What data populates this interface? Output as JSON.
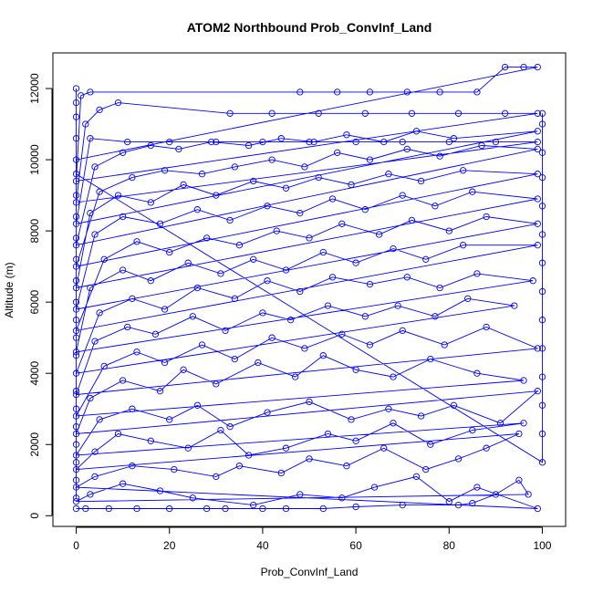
{
  "chart_data": {
    "type": "line",
    "title": "ATOM2 Northbound Prob_ConvInf_Land",
    "xlabel": "Prob_ConvInf_Land",
    "ylabel": "Altitude (m)",
    "xlim": [
      -5,
      105
    ],
    "ylim": [
      -300,
      13000
    ],
    "x_ticks": [
      0,
      20,
      40,
      60,
      80,
      100
    ],
    "y_ticks": [
      0,
      2000,
      4000,
      6000,
      8000,
      10000,
      12000
    ],
    "line_color": "#0000ff",
    "marker": "open-circle",
    "series": [
      {
        "name": "",
        "points": [
          [
            0,
            200
          ],
          [
            2,
            200
          ],
          [
            7,
            200
          ],
          [
            13,
            200
          ],
          [
            20,
            200
          ],
          [
            28,
            200
          ],
          [
            32,
            200
          ],
          [
            40,
            200
          ],
          [
            45,
            200
          ],
          [
            53,
            200
          ],
          [
            60,
            250
          ],
          [
            70,
            300
          ],
          [
            82,
            300
          ],
          [
            85,
            350
          ],
          [
            90,
            600
          ],
          [
            95,
            1000
          ],
          [
            97,
            600
          ],
          [
            0,
            400
          ],
          [
            3,
            600
          ],
          [
            10,
            900
          ],
          [
            18,
            700
          ],
          [
            25,
            500
          ],
          [
            38,
            300
          ],
          [
            48,
            600
          ],
          [
            57,
            500
          ],
          [
            64,
            800
          ],
          [
            73,
            1100
          ],
          [
            80,
            400
          ],
          [
            86,
            800
          ],
          [
            99,
            200
          ],
          [
            0,
            800
          ],
          [
            4,
            1100
          ],
          [
            12,
            1400
          ],
          [
            21,
            1300
          ],
          [
            30,
            1100
          ],
          [
            35,
            1400
          ],
          [
            44,
            1200
          ],
          [
            50,
            1600
          ],
          [
            58,
            1400
          ],
          [
            66,
            1900
          ],
          [
            75,
            1300
          ],
          [
            82,
            1600
          ],
          [
            88,
            1900
          ],
          [
            95,
            2300
          ],
          [
            0,
            1300
          ],
          [
            4,
            1800
          ],
          [
            9,
            2300
          ],
          [
            16,
            2100
          ],
          [
            24,
            1900
          ],
          [
            31,
            2400
          ],
          [
            37,
            1700
          ],
          [
            45,
            1900
          ],
          [
            54,
            2300
          ],
          [
            60,
            2100
          ],
          [
            68,
            2600
          ],
          [
            76,
            2000
          ],
          [
            85,
            2400
          ],
          [
            96,
            2600
          ],
          [
            0,
            1700
          ],
          [
            5,
            2700
          ],
          [
            12,
            3000
          ],
          [
            20,
            2700
          ],
          [
            26,
            3100
          ],
          [
            33,
            2500
          ],
          [
            41,
            2900
          ],
          [
            50,
            3200
          ],
          [
            59,
            2700
          ],
          [
            67,
            3000
          ],
          [
            74,
            2800
          ],
          [
            81,
            3100
          ],
          [
            91,
            2600
          ],
          [
            99,
            3500
          ],
          [
            0,
            2300
          ],
          [
            3,
            3300
          ],
          [
            10,
            3800
          ],
          [
            18,
            3500
          ],
          [
            23,
            4100
          ],
          [
            30,
            3700
          ],
          [
            39,
            4300
          ],
          [
            47,
            3900
          ],
          [
            53,
            4500
          ],
          [
            60,
            4100
          ],
          [
            68,
            3900
          ],
          [
            76,
            4400
          ],
          [
            86,
            4000
          ],
          [
            96,
            3800
          ],
          [
            0,
            2800
          ],
          [
            6,
            4200
          ],
          [
            13,
            4600
          ],
          [
            19,
            4300
          ],
          [
            27,
            4800
          ],
          [
            34,
            4400
          ],
          [
            42,
            5000
          ],
          [
            49,
            4700
          ],
          [
            57,
            5100
          ],
          [
            63,
            4800
          ],
          [
            70,
            5200
          ],
          [
            79,
            4800
          ],
          [
            88,
            5300
          ],
          [
            99,
            4700
          ],
          [
            0,
            3400
          ],
          [
            4,
            4900
          ],
          [
            11,
            5300
          ],
          [
            17,
            5100
          ],
          [
            25,
            5600
          ],
          [
            32,
            5200
          ],
          [
            40,
            5700
          ],
          [
            46,
            5500
          ],
          [
            54,
            5900
          ],
          [
            62,
            5600
          ],
          [
            69,
            5900
          ],
          [
            77,
            5600
          ],
          [
            84,
            6100
          ],
          [
            94,
            5900
          ],
          [
            0,
            4000
          ],
          [
            5,
            5700
          ],
          [
            12,
            6100
          ],
          [
            19,
            5800
          ],
          [
            26,
            6400
          ],
          [
            34,
            6100
          ],
          [
            41,
            6600
          ],
          [
            48,
            6300
          ],
          [
            55,
            6700
          ],
          [
            63,
            6500
          ],
          [
            71,
            6700
          ],
          [
            78,
            6400
          ],
          [
            86,
            6800
          ],
          [
            98,
            6600
          ],
          [
            0,
            4600
          ],
          [
            3,
            6400
          ],
          [
            10,
            6900
          ],
          [
            16,
            6600
          ],
          [
            24,
            7100
          ],
          [
            31,
            6800
          ],
          [
            38,
            7200
          ],
          [
            45,
            6900
          ],
          [
            53,
            7400
          ],
          [
            60,
            7100
          ],
          [
            68,
            7500
          ],
          [
            75,
            7200
          ],
          [
            83,
            7600
          ],
          [
            99,
            7600
          ],
          [
            0,
            5200
          ],
          [
            6,
            7200
          ],
          [
            13,
            7700
          ],
          [
            20,
            7400
          ],
          [
            28,
            7800
          ],
          [
            35,
            7600
          ],
          [
            43,
            8000
          ],
          [
            50,
            7800
          ],
          [
            57,
            8200
          ],
          [
            65,
            7900
          ],
          [
            72,
            8300
          ],
          [
            80,
            8000
          ],
          [
            88,
            8400
          ],
          [
            99,
            8200
          ],
          [
            0,
            5800
          ],
          [
            4,
            7900
          ],
          [
            10,
            8400
          ],
          [
            18,
            8200
          ],
          [
            26,
            8600
          ],
          [
            33,
            8300
          ],
          [
            41,
            8700
          ],
          [
            48,
            8500
          ],
          [
            55,
            8900
          ],
          [
            62,
            8600
          ],
          [
            70,
            9000
          ],
          [
            77,
            8700
          ],
          [
            85,
            9100
          ],
          [
            99,
            8900
          ],
          [
            0,
            6400
          ],
          [
            3,
            8500
          ],
          [
            9,
            9000
          ],
          [
            16,
            8800
          ],
          [
            23,
            9300
          ],
          [
            30,
            9000
          ],
          [
            38,
            9400
          ],
          [
            45,
            9200
          ],
          [
            52,
            9500
          ],
          [
            59,
            9300
          ],
          [
            67,
            9600
          ],
          [
            74,
            9400
          ],
          [
            83,
            9700
          ],
          [
            99,
            9600
          ],
          [
            0,
            7000
          ],
          [
            5,
            9100
          ],
          [
            12,
            9500
          ],
          [
            19,
            9700
          ],
          [
            27,
            9600
          ],
          [
            34,
            9800
          ],
          [
            42,
            10000
          ],
          [
            49,
            9800
          ],
          [
            56,
            10200
          ],
          [
            63,
            10000
          ],
          [
            71,
            10300
          ],
          [
            78,
            10100
          ],
          [
            87,
            10400
          ],
          [
            99,
            10300
          ],
          [
            0,
            7600
          ],
          [
            4,
            9800
          ],
          [
            10,
            10200
          ],
          [
            16,
            10400
          ],
          [
            22,
            10300
          ],
          [
            29,
            10500
          ],
          [
            37,
            10400
          ],
          [
            44,
            10600
          ],
          [
            51,
            10500
          ],
          [
            58,
            10700
          ],
          [
            66,
            10500
          ],
          [
            73,
            10800
          ],
          [
            81,
            10600
          ],
          [
            99,
            10800
          ],
          [
            0,
            8200
          ],
          [
            3,
            10600
          ],
          [
            11,
            10500
          ],
          [
            20,
            10500
          ],
          [
            30,
            10500
          ],
          [
            40,
            10500
          ],
          [
            50,
            10500
          ],
          [
            60,
            10500
          ],
          [
            70,
            10500
          ],
          [
            80,
            10500
          ],
          [
            90,
            10500
          ],
          [
            99,
            10500
          ],
          [
            0,
            8800
          ],
          [
            2,
            11000
          ],
          [
            5,
            11400
          ],
          [
            9,
            11600
          ],
          [
            33,
            11300
          ],
          [
            42,
            11300
          ],
          [
            52,
            11300
          ],
          [
            62,
            11300
          ],
          [
            72,
            11300
          ],
          [
            82,
            11300
          ],
          [
            92,
            11300
          ],
          [
            99,
            11300
          ],
          [
            0,
            9400
          ],
          [
            1,
            11800
          ],
          [
            3,
            11900
          ],
          [
            48,
            11900
          ],
          [
            56,
            11900
          ],
          [
            63,
            11900
          ],
          [
            71,
            11900
          ],
          [
            78,
            11900
          ],
          [
            86,
            11900
          ],
          [
            92,
            12600
          ],
          [
            96,
            12600
          ],
          [
            99,
            12600
          ],
          [
            0,
            10000
          ],
          [
            0,
            10600
          ],
          [
            0,
            11200
          ],
          [
            0,
            11600
          ],
          [
            0,
            12000
          ],
          [
            0,
            500
          ],
          [
            0,
            1000
          ],
          [
            0,
            1500
          ],
          [
            0,
            2000
          ],
          [
            0,
            2500
          ],
          [
            0,
            3000
          ],
          [
            0,
            3500
          ],
          [
            0,
            4500
          ],
          [
            0,
            5000
          ],
          [
            0,
            5500
          ],
          [
            0,
            6000
          ],
          [
            0,
            6600
          ],
          [
            0,
            7200
          ],
          [
            0,
            7800
          ],
          [
            0,
            8400
          ],
          [
            0,
            9000
          ],
          [
            0,
            9600
          ],
          [
            100,
            1500
          ],
          [
            100,
            2300
          ],
          [
            100,
            3100
          ],
          [
            100,
            3900
          ],
          [
            100,
            4700
          ],
          [
            100,
            5500
          ],
          [
            100,
            6300
          ],
          [
            100,
            7100
          ],
          [
            100,
            7900
          ],
          [
            100,
            8700
          ],
          [
            100,
            9500
          ],
          [
            100,
            10200
          ],
          [
            100,
            11000
          ],
          [
            100,
            11300
          ]
        ]
      }
    ]
  }
}
